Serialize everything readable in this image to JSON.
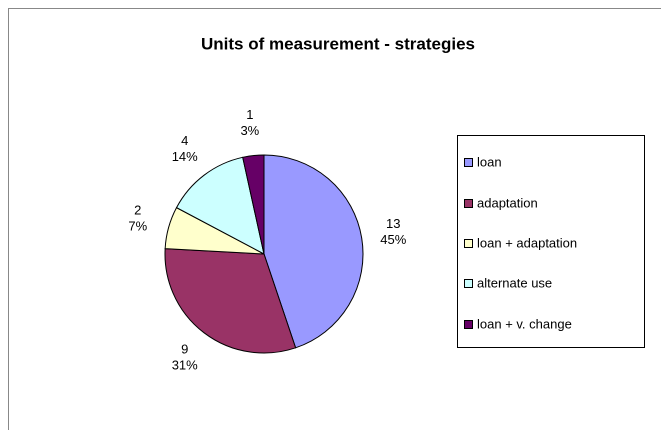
{
  "chart_data": {
    "type": "pie",
    "title": "Units of measurement - strategies",
    "categories": [
      "loan",
      "adaptation",
      "loan + adaptation",
      "alternate use",
      "loan +  v. change"
    ],
    "values": [
      13,
      9,
      2,
      4,
      1
    ],
    "percent_labels": [
      "45%",
      "31%",
      "7%",
      "14%",
      "3%"
    ],
    "colors": [
      "#9999ff",
      "#993366",
      "#ffffcc",
      "#ccffff",
      "#660066"
    ],
    "legend": "right"
  }
}
